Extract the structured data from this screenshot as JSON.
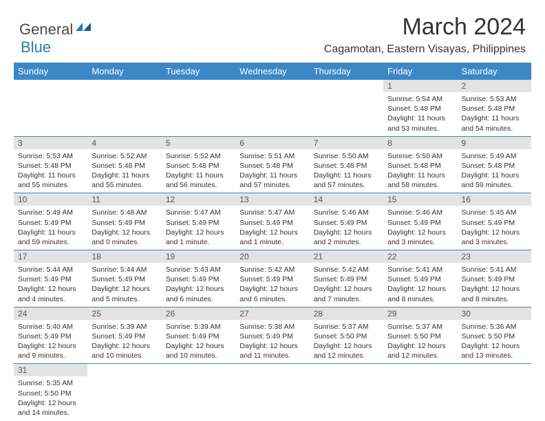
{
  "brand": {
    "part1": "General",
    "part2": "Blue"
  },
  "title": "March 2024",
  "location": "Cagamotan, Eastern Visayas, Philippines",
  "colors": {
    "header_bg": "#3b87c8",
    "header_text": "#ffffff",
    "brand_gray": "#4a4a4a",
    "brand_blue": "#2a7ab8",
    "daynum_bg": "#e3e3e3",
    "row_divider": "#3b87c8"
  },
  "weekdays": [
    "Sunday",
    "Monday",
    "Tuesday",
    "Wednesday",
    "Thursday",
    "Friday",
    "Saturday"
  ],
  "weeks": [
    [
      null,
      null,
      null,
      null,
      null,
      {
        "n": "1",
        "sr": "Sunrise: 5:54 AM",
        "ss": "Sunset: 5:48 PM",
        "dl": "Daylight: 11 hours and 53 minutes."
      },
      {
        "n": "2",
        "sr": "Sunrise: 5:53 AM",
        "ss": "Sunset: 5:48 PM",
        "dl": "Daylight: 11 hours and 54 minutes."
      }
    ],
    [
      {
        "n": "3",
        "sr": "Sunrise: 5:53 AM",
        "ss": "Sunset: 5:48 PM",
        "dl": "Daylight: 11 hours and 55 minutes."
      },
      {
        "n": "4",
        "sr": "Sunrise: 5:52 AM",
        "ss": "Sunset: 5:48 PM",
        "dl": "Daylight: 11 hours and 55 minutes."
      },
      {
        "n": "5",
        "sr": "Sunrise: 5:52 AM",
        "ss": "Sunset: 5:48 PM",
        "dl": "Daylight: 11 hours and 56 minutes."
      },
      {
        "n": "6",
        "sr": "Sunrise: 5:51 AM",
        "ss": "Sunset: 5:48 PM",
        "dl": "Daylight: 11 hours and 57 minutes."
      },
      {
        "n": "7",
        "sr": "Sunrise: 5:50 AM",
        "ss": "Sunset: 5:48 PM",
        "dl": "Daylight: 11 hours and 57 minutes."
      },
      {
        "n": "8",
        "sr": "Sunrise: 5:50 AM",
        "ss": "Sunset: 5:48 PM",
        "dl": "Daylight: 11 hours and 58 minutes."
      },
      {
        "n": "9",
        "sr": "Sunrise: 5:49 AM",
        "ss": "Sunset: 5:48 PM",
        "dl": "Daylight: 11 hours and 59 minutes."
      }
    ],
    [
      {
        "n": "10",
        "sr": "Sunrise: 5:49 AM",
        "ss": "Sunset: 5:49 PM",
        "dl": "Daylight: 11 hours and 59 minutes."
      },
      {
        "n": "11",
        "sr": "Sunrise: 5:48 AM",
        "ss": "Sunset: 5:49 PM",
        "dl": "Daylight: 12 hours and 0 minutes."
      },
      {
        "n": "12",
        "sr": "Sunrise: 5:47 AM",
        "ss": "Sunset: 5:49 PM",
        "dl": "Daylight: 12 hours and 1 minute."
      },
      {
        "n": "13",
        "sr": "Sunrise: 5:47 AM",
        "ss": "Sunset: 5:49 PM",
        "dl": "Daylight: 12 hours and 1 minute."
      },
      {
        "n": "14",
        "sr": "Sunrise: 5:46 AM",
        "ss": "Sunset: 5:49 PM",
        "dl": "Daylight: 12 hours and 2 minutes."
      },
      {
        "n": "15",
        "sr": "Sunrise: 5:46 AM",
        "ss": "Sunset: 5:49 PM",
        "dl": "Daylight: 12 hours and 3 minutes."
      },
      {
        "n": "16",
        "sr": "Sunrise: 5:45 AM",
        "ss": "Sunset: 5:49 PM",
        "dl": "Daylight: 12 hours and 3 minutes."
      }
    ],
    [
      {
        "n": "17",
        "sr": "Sunrise: 5:44 AM",
        "ss": "Sunset: 5:49 PM",
        "dl": "Daylight: 12 hours and 4 minutes."
      },
      {
        "n": "18",
        "sr": "Sunrise: 5:44 AM",
        "ss": "Sunset: 5:49 PM",
        "dl": "Daylight: 12 hours and 5 minutes."
      },
      {
        "n": "19",
        "sr": "Sunrise: 5:43 AM",
        "ss": "Sunset: 5:49 PM",
        "dl": "Daylight: 12 hours and 6 minutes."
      },
      {
        "n": "20",
        "sr": "Sunrise: 5:42 AM",
        "ss": "Sunset: 5:49 PM",
        "dl": "Daylight: 12 hours and 6 minutes."
      },
      {
        "n": "21",
        "sr": "Sunrise: 5:42 AM",
        "ss": "Sunset: 5:49 PM",
        "dl": "Daylight: 12 hours and 7 minutes."
      },
      {
        "n": "22",
        "sr": "Sunrise: 5:41 AM",
        "ss": "Sunset: 5:49 PM",
        "dl": "Daylight: 12 hours and 8 minutes."
      },
      {
        "n": "23",
        "sr": "Sunrise: 5:41 AM",
        "ss": "Sunset: 5:49 PM",
        "dl": "Daylight: 12 hours and 8 minutes."
      }
    ],
    [
      {
        "n": "24",
        "sr": "Sunrise: 5:40 AM",
        "ss": "Sunset: 5:49 PM",
        "dl": "Daylight: 12 hours and 9 minutes."
      },
      {
        "n": "25",
        "sr": "Sunrise: 5:39 AM",
        "ss": "Sunset: 5:49 PM",
        "dl": "Daylight: 12 hours and 10 minutes."
      },
      {
        "n": "26",
        "sr": "Sunrise: 5:39 AM",
        "ss": "Sunset: 5:49 PM",
        "dl": "Daylight: 12 hours and 10 minutes."
      },
      {
        "n": "27",
        "sr": "Sunrise: 5:38 AM",
        "ss": "Sunset: 5:49 PM",
        "dl": "Daylight: 12 hours and 11 minutes."
      },
      {
        "n": "28",
        "sr": "Sunrise: 5:37 AM",
        "ss": "Sunset: 5:50 PM",
        "dl": "Daylight: 12 hours and 12 minutes."
      },
      {
        "n": "29",
        "sr": "Sunrise: 5:37 AM",
        "ss": "Sunset: 5:50 PM",
        "dl": "Daylight: 12 hours and 12 minutes."
      },
      {
        "n": "30",
        "sr": "Sunrise: 5:36 AM",
        "ss": "Sunset: 5:50 PM",
        "dl": "Daylight: 12 hours and 13 minutes."
      }
    ],
    [
      {
        "n": "31",
        "sr": "Sunrise: 5:35 AM",
        "ss": "Sunset: 5:50 PM",
        "dl": "Daylight: 12 hours and 14 minutes."
      },
      null,
      null,
      null,
      null,
      null,
      null
    ]
  ]
}
